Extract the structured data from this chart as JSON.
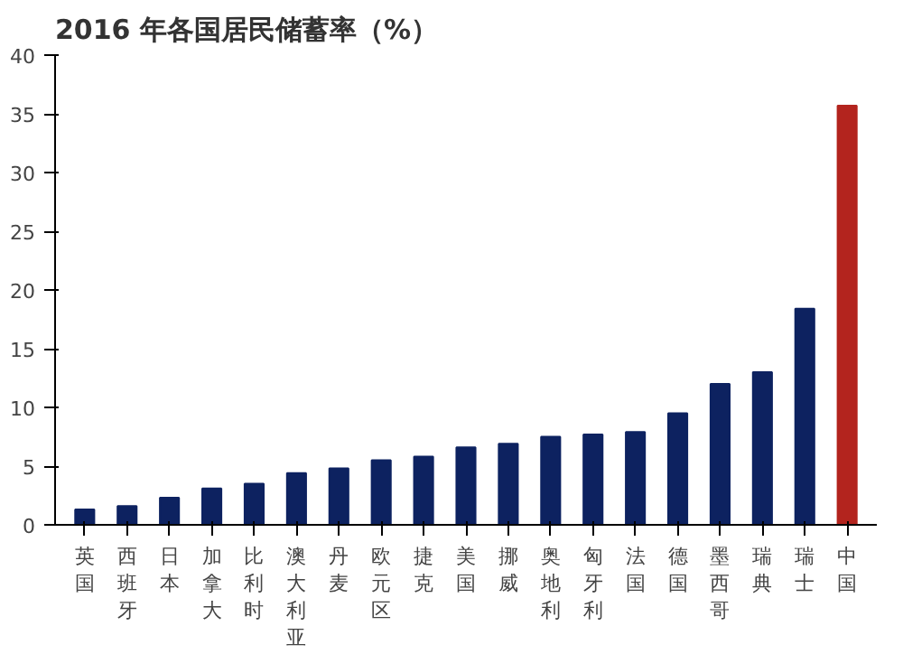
{
  "chart_data": {
    "type": "bar",
    "title": "2016 年各国居民储蓄率（%）",
    "categories": [
      "英国",
      "西班牙",
      "日本",
      "加拿大",
      "比利时",
      "澳大利亚",
      "丹麦",
      "欧元区",
      "捷克",
      "美国",
      "挪威",
      "奥地利",
      "匈牙利",
      "法国",
      "德国",
      "墨西哥",
      "瑞典",
      "瑞士",
      "中国"
    ],
    "values": [
      1.3,
      1.6,
      2.3,
      3.1,
      3.5,
      4.4,
      4.8,
      5.5,
      5.8,
      6.6,
      6.9,
      7.5,
      7.7,
      7.9,
      9.5,
      12,
      13,
      18.4,
      35.7
    ],
    "colors": [
      "#0d2260",
      "#0d2260",
      "#0d2260",
      "#0d2260",
      "#0d2260",
      "#0d2260",
      "#0d2260",
      "#0d2260",
      "#0d2260",
      "#0d2260",
      "#0d2260",
      "#0d2260",
      "#0d2260",
      "#0d2260",
      "#0d2260",
      "#0d2260",
      "#0d2260",
      "#0d2260",
      "#b3241e"
    ],
    "ylim": [
      0,
      40
    ],
    "yticks": [
      0,
      5,
      10,
      15,
      20,
      25,
      30,
      35,
      40
    ],
    "grid": false
  }
}
